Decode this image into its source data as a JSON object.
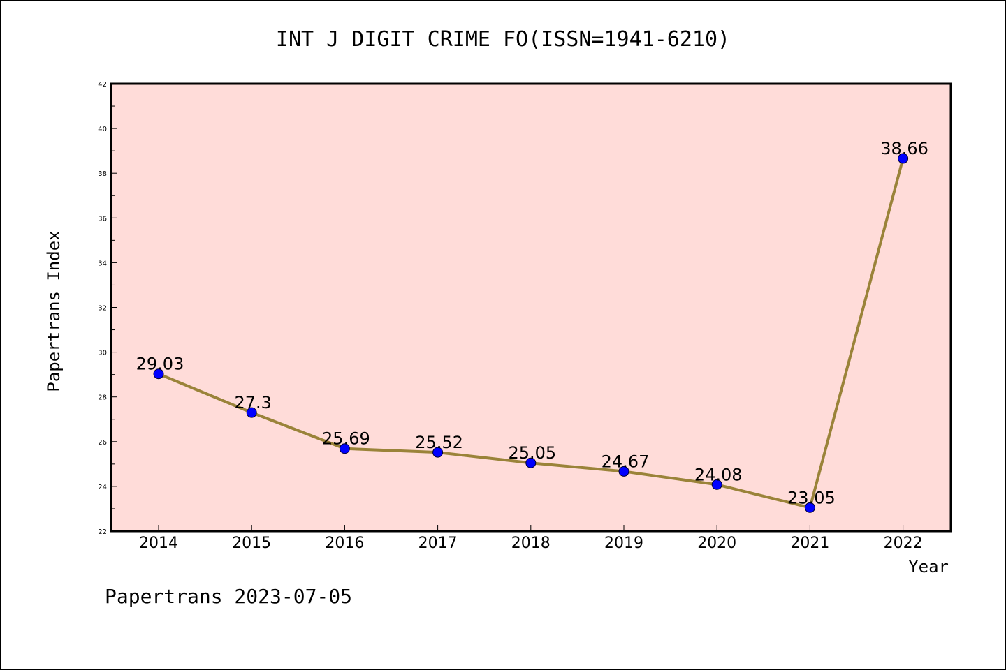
{
  "chart_data": {
    "type": "line",
    "title": "INT J DIGIT CRIME FO(ISSN=1941-6210)",
    "xlabel": "Year",
    "ylabel": "Papertrans Index",
    "categories": [
      "2014",
      "2015",
      "2016",
      "2017",
      "2018",
      "2019",
      "2020",
      "2021",
      "2022"
    ],
    "values": [
      29.03,
      27.3,
      25.69,
      25.52,
      25.05,
      24.67,
      24.08,
      23.05,
      38.66
    ],
    "data_labels": [
      "29.03",
      "27.3",
      "25.69",
      "25.52",
      "25.05",
      "24.67",
      "24.08",
      "23.05",
      "38.66"
    ],
    "ylim": [
      22,
      42
    ],
    "yticks": [
      "22",
      "24",
      "26",
      "28",
      "30",
      "32",
      "34",
      "36",
      "38",
      "40",
      "42"
    ],
    "grid": false,
    "colors": {
      "plot_bg": "#ffdcd9",
      "line": "#9a8339",
      "marker": "#0000ff"
    }
  },
  "footer": {
    "text": "Papertrans 2023-07-05"
  }
}
